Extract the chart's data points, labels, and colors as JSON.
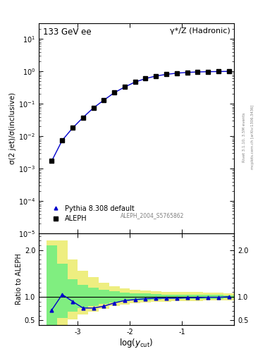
{
  "title_left": "133 GeV ee",
  "title_right": "γ*/Z (Hadronic)",
  "ylabel_main": "σ(2 jet)/σ(inclusive)",
  "ylabel_ratio": "Ratio to ALEPH",
  "xlabel": "log(y_{cut})",
  "right_label1": "Rivet 3.1.10, 3.5M events",
  "right_label2": "mcplots.cern.ch [arXiv:1306.3436]",
  "annotation": "ALEPH_2004_S5765862",
  "log_ycut": [
    -3.5,
    -3.3,
    -3.1,
    -2.9,
    -2.7,
    -2.5,
    -2.3,
    -2.1,
    -1.9,
    -1.7,
    -1.5,
    -1.3,
    -1.1,
    -0.9,
    -0.7,
    -0.5,
    -0.3,
    -0.1
  ],
  "data_values": [
    0.00175,
    0.0075,
    0.018,
    0.038,
    0.075,
    0.13,
    0.22,
    0.33,
    0.47,
    0.6,
    0.72,
    0.81,
    0.88,
    0.93,
    0.96,
    0.98,
    0.99,
    1.0
  ],
  "mc_values": [
    0.00175,
    0.0075,
    0.018,
    0.038,
    0.075,
    0.13,
    0.22,
    0.33,
    0.47,
    0.6,
    0.72,
    0.81,
    0.88,
    0.93,
    0.96,
    0.98,
    0.99,
    1.0
  ],
  "ratio_mc": [
    0.72,
    1.05,
    0.9,
    0.76,
    0.76,
    0.8,
    0.87,
    0.92,
    0.94,
    0.96,
    0.97,
    0.97,
    0.97,
    0.98,
    0.98,
    0.99,
    0.99,
    1.0
  ],
  "green_band_lo": [
    0.4,
    0.55,
    0.68,
    0.76,
    0.81,
    0.85,
    0.88,
    0.91,
    0.92,
    0.93,
    0.94,
    0.95,
    0.95,
    0.95,
    0.95,
    0.96,
    0.96,
    0.97
  ],
  "green_band_hi": [
    2.1,
    1.7,
    1.38,
    1.26,
    1.2,
    1.15,
    1.12,
    1.09,
    1.08,
    1.07,
    1.06,
    1.05,
    1.05,
    1.05,
    1.05,
    1.04,
    1.04,
    1.03
  ],
  "yellow_band_lo": [
    0.35,
    0.4,
    0.52,
    0.62,
    0.68,
    0.75,
    0.8,
    0.84,
    0.86,
    0.88,
    0.89,
    0.9,
    0.91,
    0.91,
    0.91,
    0.92,
    0.92,
    0.93
  ],
  "yellow_band_hi": [
    2.2,
    2.2,
    1.8,
    1.55,
    1.42,
    1.3,
    1.23,
    1.18,
    1.15,
    1.13,
    1.12,
    1.11,
    1.1,
    1.1,
    1.1,
    1.09,
    1.09,
    1.08
  ],
  "data_color": "#000000",
  "mc_color": "#0000cc",
  "green_color": "#80ee80",
  "yellow_color": "#eeee80",
  "xlim": [
    -3.75,
    0.0
  ],
  "ylim_main_lo": 1e-05,
  "ylim_main_hi": 30.0,
  "ylim_ratio_lo": 0.4,
  "ylim_ratio_hi": 2.35,
  "ratio_yticks": [
    0.5,
    1.0,
    2.0
  ]
}
